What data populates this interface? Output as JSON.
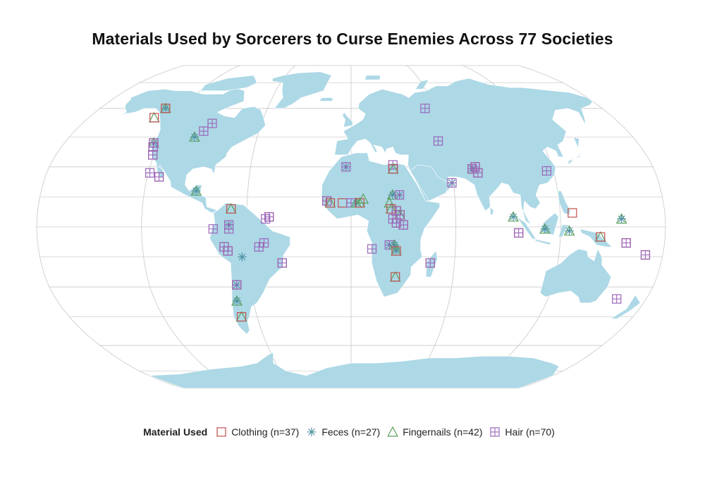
{
  "title": "Materials Used by Sorcerers to Curse Enemies Across 77 Societies",
  "colors": {
    "land": "#add8e6",
    "ocean": "#ffffff",
    "graticule": "#c8c8c8",
    "border": "#ffffff"
  },
  "legend": {
    "title": "Material Used",
    "items": [
      {
        "key": "clothing",
        "label": "Clothing (n=37)",
        "color": "#c0504d",
        "symbol": "square"
      },
      {
        "key": "feces",
        "label": "Feces (n=27)",
        "color": "#4a8fa1",
        "symbol": "asterisk"
      },
      {
        "key": "fingernails",
        "label": "Fingernails (n=42)",
        "color": "#5aa05a",
        "symbol": "triangle"
      },
      {
        "key": "hair",
        "label": "Hair (n=70)",
        "color": "#9966bb",
        "symbol": "boxplus"
      }
    ]
  },
  "chart_data": {
    "type": "scatter",
    "projection": "Robinson",
    "x_label": "longitude",
    "y_label": "latitude",
    "points": [
      {
        "lon": -133,
        "lat": 60,
        "m": [
          "clothing",
          "feces",
          "fingernails"
        ]
      },
      {
        "lon": -135,
        "lat": 55,
        "m": [
          "clothing",
          "fingernails"
        ]
      },
      {
        "lon": -93,
        "lat": 52,
        "m": [
          "hair"
        ]
      },
      {
        "lon": -96,
        "lat": 48,
        "m": [
          "hair"
        ]
      },
      {
        "lon": -100,
        "lat": 45,
        "m": [
          "feces",
          "fingernails"
        ]
      },
      {
        "lon": -124,
        "lat": 42,
        "m": [
          "clothing",
          "feces",
          "fingernails",
          "hair"
        ]
      },
      {
        "lon": -123,
        "lat": 40,
        "m": [
          "clothing",
          "hair"
        ]
      },
      {
        "lon": -121,
        "lat": 36,
        "m": [
          "clothing",
          "hair"
        ]
      },
      {
        "lon": -119,
        "lat": 27,
        "m": [
          "hair"
        ]
      },
      {
        "lon": -113,
        "lat": 25,
        "m": [
          "clothing",
          "hair"
        ]
      },
      {
        "lon": -90,
        "lat": 18,
        "m": [
          "feces",
          "fingernails"
        ]
      },
      {
        "lon": -69,
        "lat": 9,
        "m": [
          "clothing",
          "fingernails"
        ]
      },
      {
        "lon": -47,
        "lat": 5,
        "m": [
          "clothing",
          "hair"
        ]
      },
      {
        "lon": -49,
        "lat": 4,
        "m": [
          "hair"
        ]
      },
      {
        "lon": -70,
        "lat": 1,
        "m": [
          "feces",
          "hair"
        ]
      },
      {
        "lon": -70,
        "lat": -1,
        "m": [
          "hair"
        ]
      },
      {
        "lon": -79,
        "lat": -1,
        "m": [
          "hair"
        ]
      },
      {
        "lon": -73,
        "lat": -10,
        "m": [
          "clothing",
          "hair"
        ]
      },
      {
        "lon": -71,
        "lat": -12,
        "m": [
          "clothing",
          "hair"
        ]
      },
      {
        "lon": -53,
        "lat": -10,
        "m": [
          "hair"
        ]
      },
      {
        "lon": -50,
        "lat": -8,
        "m": [
          "hair"
        ]
      },
      {
        "lon": -63,
        "lat": -15,
        "m": [
          "feces"
        ]
      },
      {
        "lon": -40,
        "lat": -18,
        "m": [
          "clothing",
          "hair"
        ]
      },
      {
        "lon": -68,
        "lat": -29,
        "m": [
          "clothing",
          "feces",
          "hair"
        ]
      },
      {
        "lon": -70,
        "lat": -37,
        "m": [
          "feces",
          "fingernails"
        ]
      },
      {
        "lon": -70,
        "lat": -45,
        "m": [
          "clothing",
          "fingernails"
        ]
      },
      {
        "lon": -3,
        "lat": 30,
        "m": [
          "feces",
          "hair"
        ]
      },
      {
        "lon": -14,
        "lat": 13,
        "m": [
          "clothing",
          "hair"
        ]
      },
      {
        "lon": -12,
        "lat": 12,
        "m": [
          "clothing",
          "fingernails"
        ]
      },
      {
        "lon": -5,
        "lat": 12,
        "m": [
          "clothing"
        ]
      },
      {
        "lon": 0,
        "lat": 12,
        "m": [
          "hair"
        ]
      },
      {
        "lon": 3,
        "lat": 12,
        "m": [
          "feces",
          "fingernails"
        ]
      },
      {
        "lon": 5,
        "lat": 12,
        "m": [
          "clothing",
          "fingernails"
        ]
      },
      {
        "lon": 7,
        "lat": 14,
        "m": [
          "fingernails"
        ]
      },
      {
        "lon": 25,
        "lat": 31,
        "m": [
          "hair"
        ]
      },
      {
        "lon": 25,
        "lat": 29,
        "m": [
          "clothing",
          "fingernails"
        ]
      },
      {
        "lon": 24,
        "lat": 16,
        "m": [
          "feces",
          "fingernails"
        ]
      },
      {
        "lon": 28,
        "lat": 16,
        "m": [
          "feces",
          "hair"
        ]
      },
      {
        "lon": 22,
        "lat": 12,
        "m": [
          "fingernails"
        ]
      },
      {
        "lon": 23,
        "lat": 9,
        "m": [
          "clothing",
          "fingernails"
        ]
      },
      {
        "lon": 26,
        "lat": 8,
        "m": [
          "clothing",
          "hair"
        ]
      },
      {
        "lon": 28,
        "lat": 6,
        "m": [
          "clothing",
          "fingernails",
          "hair"
        ]
      },
      {
        "lon": 24,
        "lat": 4,
        "m": [
          "hair"
        ]
      },
      {
        "lon": 26,
        "lat": 2,
        "m": [
          "clothing",
          "hair"
        ]
      },
      {
        "lon": 30,
        "lat": 1,
        "m": [
          "clothing",
          "hair"
        ]
      },
      {
        "lon": 12,
        "lat": -11,
        "m": [
          "hair"
        ]
      },
      {
        "lon": 22,
        "lat": -9,
        "m": [
          "feces",
          "hair"
        ]
      },
      {
        "lon": 25,
        "lat": -9,
        "m": [
          "feces",
          "fingernails"
        ]
      },
      {
        "lon": 26,
        "lat": -12,
        "m": [
          "clothing",
          "feces",
          "fingernails"
        ]
      },
      {
        "lon": 26,
        "lat": -25,
        "m": [
          "clothing",
          "fingernails"
        ]
      },
      {
        "lon": 46,
        "lat": -18,
        "m": [
          "clothing",
          "hair"
        ]
      },
      {
        "lon": 53,
        "lat": 60,
        "m": [
          "hair"
        ]
      },
      {
        "lon": 55,
        "lat": 43,
        "m": [
          "hair"
        ]
      },
      {
        "lon": 72,
        "lat": 29,
        "m": [
          "clothing",
          "feces",
          "hair"
        ]
      },
      {
        "lon": 75,
        "lat": 27,
        "m": [
          "clothing",
          "hair"
        ]
      },
      {
        "lon": 74,
        "lat": 30,
        "m": [
          "clothing",
          "hair"
        ]
      },
      {
        "lon": 59,
        "lat": 22,
        "m": [
          "feces",
          "hair"
        ]
      },
      {
        "lon": 93,
        "lat": 5,
        "m": [
          "feces",
          "fingernails"
        ]
      },
      {
        "lon": 96,
        "lat": -3,
        "m": [
          "clothing",
          "hair"
        ]
      },
      {
        "lon": 111,
        "lat": -1,
        "m": [
          "feces",
          "fingernails"
        ]
      },
      {
        "lon": 116,
        "lat": 28,
        "m": [
          "hair"
        ]
      },
      {
        "lon": 125,
        "lat": -2,
        "m": [
          "feces",
          "fingernails"
        ]
      },
      {
        "lon": 127,
        "lat": 7,
        "m": [
          "clothing"
        ]
      },
      {
        "lon": 143,
        "lat": -5,
        "m": [
          "clothing",
          "fingernails"
        ]
      },
      {
        "lon": 158,
        "lat": -8,
        "m": [
          "clothing",
          "hair"
        ]
      },
      {
        "lon": 155,
        "lat": 4,
        "m": [
          "feces",
          "fingernails"
        ]
      },
      {
        "lon": 170,
        "lat": -14,
        "m": [
          "clothing",
          "hair"
        ]
      },
      {
        "lon": 162,
        "lat": -36,
        "m": [
          "hair"
        ]
      }
    ]
  }
}
